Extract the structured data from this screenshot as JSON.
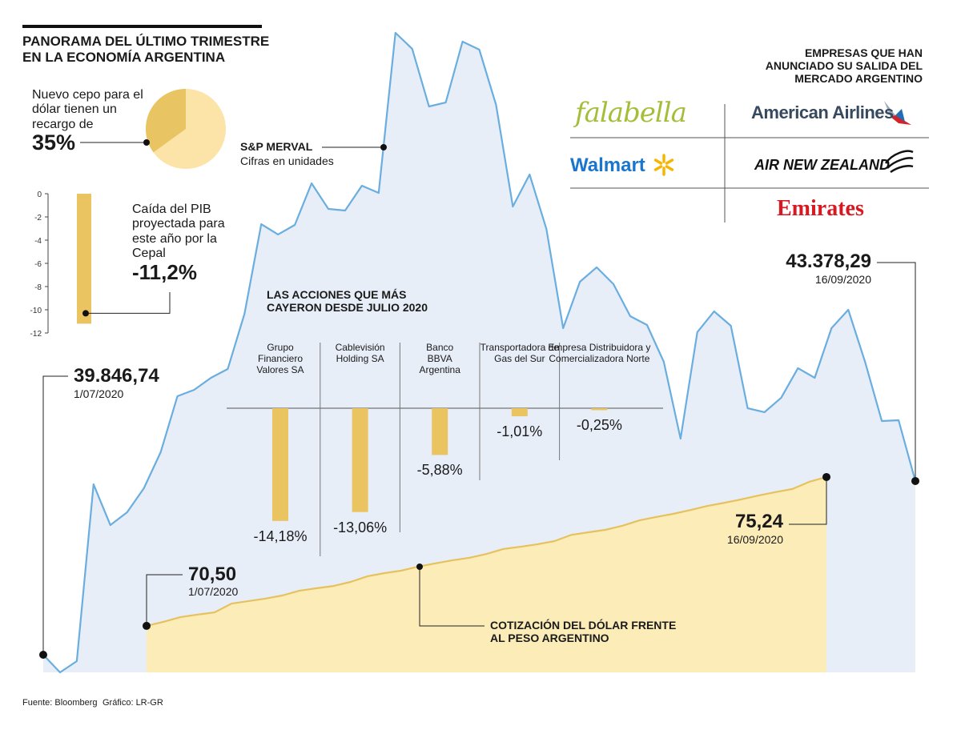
{
  "title": "PANORAMA DEL ÚLTIMO TRIMESTRE EN LA ECONOMÍA ARGENTINA",
  "source": "Fuente: Bloomberg",
  "credit": "Gráfico: LR-GR",
  "companies": {
    "title": "EMPRESAS QUE HAN ANUNCIADO SU SALIDA DEL MERCADO ARGENTINO",
    "names": [
      "falabella",
      "American Airlines",
      "Walmart",
      "AIR NEW ZEALAND",
      "Emirates"
    ]
  },
  "chart_data": [
    {
      "type": "pie",
      "title": "Nuevo cepo para el dólar tienen un recargo de",
      "values": [
        35
      ],
      "value_labels": [
        "35%"
      ],
      "colors": [
        "#e8c463"
      ],
      "background_color": "#fce4a8"
    },
    {
      "type": "bar",
      "title": "Caída del PIB proyectada para este año por la Cepal",
      "values": [
        -11.2
      ],
      "value_labels": [
        "-11,2%"
      ],
      "color": "#ebc462",
      "ylim": [
        -12,
        0
      ],
      "yticks": [
        0,
        -2,
        -4,
        -6,
        -8,
        -10,
        -12
      ]
    },
    {
      "type": "area",
      "title": "S&P MERVAL",
      "subtitle": "Cifras en unidades",
      "x": [
        "1/07/2020",
        null,
        null,
        null,
        null,
        null,
        null,
        null,
        null,
        null,
        null,
        null,
        null,
        null,
        null,
        null,
        null,
        null,
        null,
        null,
        null,
        null,
        null,
        null,
        null,
        null,
        null,
        null,
        null,
        null,
        null,
        null,
        null,
        null,
        null,
        null,
        null,
        null,
        null,
        null,
        null,
        null,
        null,
        null,
        null,
        null,
        null,
        null,
        null,
        null,
        null,
        null,
        "16/09/2020"
      ],
      "values": [
        39846.74,
        39489,
        39717,
        43312,
        42483,
        42743,
        43231,
        43963,
        45102,
        45232,
        45476,
        45655,
        46778,
        48600,
        48389,
        48584,
        49430,
        48909,
        48877,
        49381,
        49235,
        52489,
        52163,
        50992,
        51073,
        52310,
        52147,
        51024,
        48958,
        49609,
        48503,
        46485,
        47429,
        47722,
        47380,
        46729,
        46550,
        45802,
        44240,
        46404,
        46827,
        46534,
        44858,
        44777,
        45070,
        45672,
        45476,
        46485,
        46859,
        45802,
        44598,
        44614,
        43378.29
      ],
      "value_labels": [
        "39.846,74",
        null,
        null,
        null,
        null,
        null,
        null,
        null,
        null,
        null,
        null,
        null,
        null,
        null,
        null,
        null,
        null,
        null,
        null,
        null,
        null,
        null,
        null,
        null,
        null,
        null,
        null,
        null,
        null,
        null,
        null,
        null,
        null,
        null,
        null,
        null,
        null,
        null,
        null,
        null,
        null,
        null,
        null,
        null,
        null,
        null,
        null,
        null,
        null,
        null,
        null,
        null,
        "43.378,29"
      ],
      "color": "#6aaee0",
      "fill": "#e8eef8",
      "ylim": [
        39489,
        52505
      ]
    },
    {
      "type": "area",
      "title": "COTIZACIÓN DEL DÓLAR FRENTE AL PESO ARGENTINO",
      "x": [
        "1/07/2020",
        null,
        null,
        null,
        null,
        null,
        null,
        null,
        null,
        null,
        null,
        null,
        null,
        null,
        null,
        null,
        null,
        null,
        null,
        null,
        null,
        null,
        null,
        null,
        null,
        null,
        null,
        null,
        null,
        null,
        null,
        null,
        null,
        null,
        null,
        null,
        null,
        null,
        null,
        null,
        "16/09/2020"
      ],
      "values": [
        70.5,
        70.63,
        70.78,
        70.86,
        70.93,
        71.21,
        71.29,
        71.37,
        71.47,
        71.62,
        71.7,
        71.77,
        71.9,
        72.08,
        72.18,
        72.26,
        72.39,
        72.49,
        72.59,
        72.67,
        72.79,
        72.95,
        73.02,
        73.1,
        73.2,
        73.4,
        73.48,
        73.56,
        73.69,
        73.86,
        73.97,
        74.07,
        74.19,
        74.32,
        74.42,
        74.53,
        74.65,
        74.76,
        74.86,
        75.09,
        75.24
      ],
      "value_labels": [
        "70,50",
        null,
        null,
        null,
        null,
        null,
        null,
        null,
        null,
        null,
        null,
        null,
        null,
        null,
        null,
        null,
        null,
        null,
        null,
        null,
        null,
        null,
        null,
        null,
        null,
        null,
        null,
        null,
        null,
        null,
        null,
        null,
        null,
        null,
        null,
        null,
        null,
        null,
        null,
        null,
        "75,24"
      ],
      "color": "#e6c25e",
      "fill": "#fcecb8",
      "ylim": [
        69.02,
        89.41
      ]
    },
    {
      "type": "bar",
      "title": "LAS ACCIONES QUE MÁS CAYERON DESDE JULIO 2020",
      "categories": [
        "Grupo Financiero Valores SA",
        "Cablevisión Holding SA",
        "Banco BBVA Argentina",
        "Transportadora de Gas del Sur",
        "Empresa Distribuidora y Comercializadora Norte"
      ],
      "values": [
        -14.18,
        -13.06,
        -5.88,
        -1.01,
        -0.25
      ],
      "value_labels": [
        "-14,18%",
        "-13,06%",
        "-5,88%",
        "-1,01%",
        "-0,25%"
      ],
      "color": "#ebc462",
      "ylim": [
        -15,
        0
      ]
    }
  ]
}
